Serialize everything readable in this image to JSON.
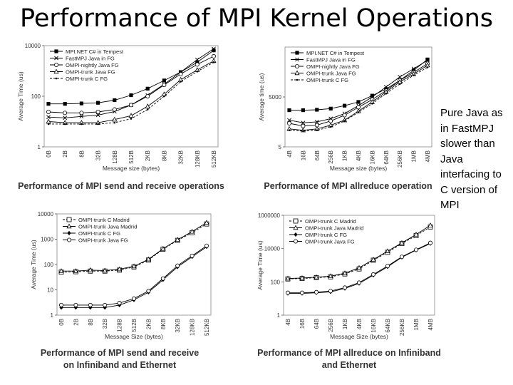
{
  "slide": {
    "title": "Performance of MPI Kernel Operations",
    "side_note": "Pure Java as in FastMPJ slower than Java interfacing to C version of MPI"
  },
  "chart_data": [
    {
      "id": "c1",
      "type": "line",
      "caption": "Performance of MPI send and receive operations",
      "xlabel": "Message size (bytes)",
      "ylabel": "Average Time (us)",
      "yscale": "log",
      "ylim": [
        1,
        10000
      ],
      "yticks": [
        "1",
        "100",
        "10000"
      ],
      "ytick_values": [
        1,
        100,
        10000
      ],
      "categories": [
        "0B",
        "2B",
        "8B",
        "32B",
        "128B",
        "512B",
        "2KB",
        "8KB",
        "32KB",
        "128KB",
        "512KB"
      ],
      "legend": "top-left",
      "series": [
        {
          "name": "MPI.NET C# in Tempest",
          "marker": "square-filled",
          "dash": "solid",
          "values": [
            50,
            50,
            52,
            55,
            70,
            110,
            200,
            420,
            900,
            2200,
            6500
          ]
        },
        {
          "name": "FastMPJ Java in FG",
          "marker": "x",
          "dash": "solid",
          "values": [
            15,
            14,
            16,
            18,
            25,
            45,
            110,
            300,
            900,
            2800,
            7500
          ]
        },
        {
          "name": "OMPI-nightly Java FG",
          "marker": "circle-open",
          "dash": "solid",
          "values": [
            24,
            22,
            22,
            24,
            30,
            45,
            100,
            280,
            750,
            1800,
            3800
          ]
        },
        {
          "name": "OMPI-trunk Java FG",
          "marker": "triangle-open",
          "dash": "solid",
          "values": [
            10,
            9,
            9,
            9,
            12,
            17,
            40,
            120,
            450,
            1100,
            2500
          ]
        },
        {
          "name": "OMPI-trunk C FG",
          "marker": "dot",
          "dash": "dashed",
          "values": [
            8,
            8,
            8,
            8,
            9,
            13,
            30,
            100,
            380,
            950,
            2200
          ]
        }
      ]
    },
    {
      "id": "c2",
      "type": "line",
      "caption": "Performance of MPI allreduce operation",
      "xlabel": "Message size (bytes)",
      "ylabel": "Average time (us)",
      "yscale": "log",
      "ylim": [
        5,
        5000000
      ],
      "yticks": [
        "5",
        "5000"
      ],
      "ytick_values": [
        5,
        5000
      ],
      "categories": [
        "4B",
        "16B",
        "64B",
        "256B",
        "1KB",
        "4KB",
        "16KB",
        "64KB",
        "256KB",
        "1MB",
        "4MB"
      ],
      "legend": "top-left",
      "series": [
        {
          "name": "MPI.NET C# in Tempest",
          "marker": "square-filled",
          "dash": "solid",
          "values": [
            800,
            800,
            850,
            1000,
            1500,
            2500,
            6000,
            15000,
            50000,
            200000,
            900000
          ]
        },
        {
          "name": "FastMPJ Java in FG",
          "marker": "x",
          "dash": "solid",
          "values": [
            200,
            140,
            160,
            250,
            500,
            1500,
            5000,
            20000,
            80000,
            250000,
            800000
          ]
        },
        {
          "name": "OMPI-nightly Java FG",
          "marker": "circle-open",
          "dash": "solid",
          "values": [
            130,
            90,
            100,
            180,
            400,
            1200,
            3500,
            12000,
            50000,
            150000,
            500000
          ]
        },
        {
          "name": "OMPI-trunk Java FG",
          "marker": "triangle-open",
          "dash": "solid",
          "values": [
            60,
            50,
            60,
            100,
            200,
            700,
            2500,
            10000,
            40000,
            120000,
            400000
          ]
        },
        {
          "name": "OMPI-trunk C FG",
          "marker": "dot",
          "dash": "dashed",
          "values": [
            50,
            45,
            50,
            80,
            180,
            600,
            2000,
            8000,
            30000,
            100000,
            300000
          ]
        }
      ]
    },
    {
      "id": "c3",
      "type": "line",
      "caption": "Performance of MPI send and receive on Infiniband and Ethernet",
      "xlabel": "Message Size (bytes)",
      "ylabel": "Average Time (us)",
      "yscale": "log",
      "ylim": [
        1,
        10000
      ],
      "yticks": [
        "1",
        "10",
        "100",
        "1000",
        "10000"
      ],
      "ytick_values": [
        1,
        10,
        100,
        1000,
        10000
      ],
      "categories": [
        "0B",
        "2B",
        "8B",
        "32B",
        "128B",
        "512B",
        "2KB",
        "8KB",
        "32KB",
        "128KB",
        "512KB"
      ],
      "legend": "top-left",
      "series": [
        {
          "name": "OMPI-trunk C Madrid",
          "marker": "square-open",
          "dash": "dashed",
          "values": [
            50,
            52,
            55,
            55,
            60,
            80,
            150,
            400,
            900,
            1800,
            4000
          ]
        },
        {
          "name": "OMPI-trunk Java Madrid",
          "marker": "triangle-open",
          "dash": "solid",
          "values": [
            55,
            55,
            60,
            58,
            65,
            85,
            160,
            420,
            950,
            2000,
            4500
          ]
        },
        {
          "name": "OMPI-trunk C FG",
          "marker": "diamond-filled",
          "dash": "solid",
          "values": [
            2,
            2,
            2,
            2,
            2.5,
            4,
            8,
            25,
            80,
            200,
            500
          ]
        },
        {
          "name": "OMPI-trunk Java FG",
          "marker": "circle-open",
          "dash": "solid",
          "values": [
            2.5,
            2.5,
            2.5,
            2.5,
            3,
            4.5,
            9,
            28,
            90,
            220,
            550
          ]
        }
      ]
    },
    {
      "id": "c4",
      "type": "line",
      "caption": "Performance of MPI allreduce on Infiniband and Ethernet",
      "xlabel": "Message Size (bytes)",
      "ylabel": "Average Time (us)",
      "yscale": "log",
      "ylim": [
        1,
        1000000
      ],
      "yticks": [
        "1",
        "100",
        "10000",
        "1000000"
      ],
      "ytick_values": [
        1,
        100,
        10000,
        1000000
      ],
      "categories": [
        "4B",
        "16B",
        "64B",
        "256B",
        "1KB",
        "4KB",
        "16KB",
        "64KB",
        "256KB",
        "1MB",
        "4MB"
      ],
      "legend": "top-left",
      "series": [
        {
          "name": "OMPI-trunk C Madrid",
          "marker": "square-open",
          "dash": "dashed",
          "values": [
            150,
            160,
            180,
            200,
            300,
            600,
            2000,
            6000,
            20000,
            60000,
            200000
          ]
        },
        {
          "name": "OMPI-trunk Java Madrid",
          "marker": "triangle-open",
          "dash": "solid",
          "values": [
            160,
            170,
            190,
            220,
            330,
            700,
            2200,
            7000,
            22000,
            70000,
            250000
          ]
        },
        {
          "name": "OMPI-trunk C FG",
          "marker": "diamond-filled",
          "dash": "solid",
          "values": [
            20,
            20,
            22,
            25,
            40,
            80,
            250,
            800,
            3000,
            8000,
            20000
          ]
        },
        {
          "name": "OMPI-trunk Java FG",
          "marker": "circle-open",
          "dash": "solid",
          "values": [
            22,
            22,
            24,
            28,
            45,
            90,
            280,
            900,
            3200,
            8500,
            22000
          ]
        }
      ]
    }
  ]
}
